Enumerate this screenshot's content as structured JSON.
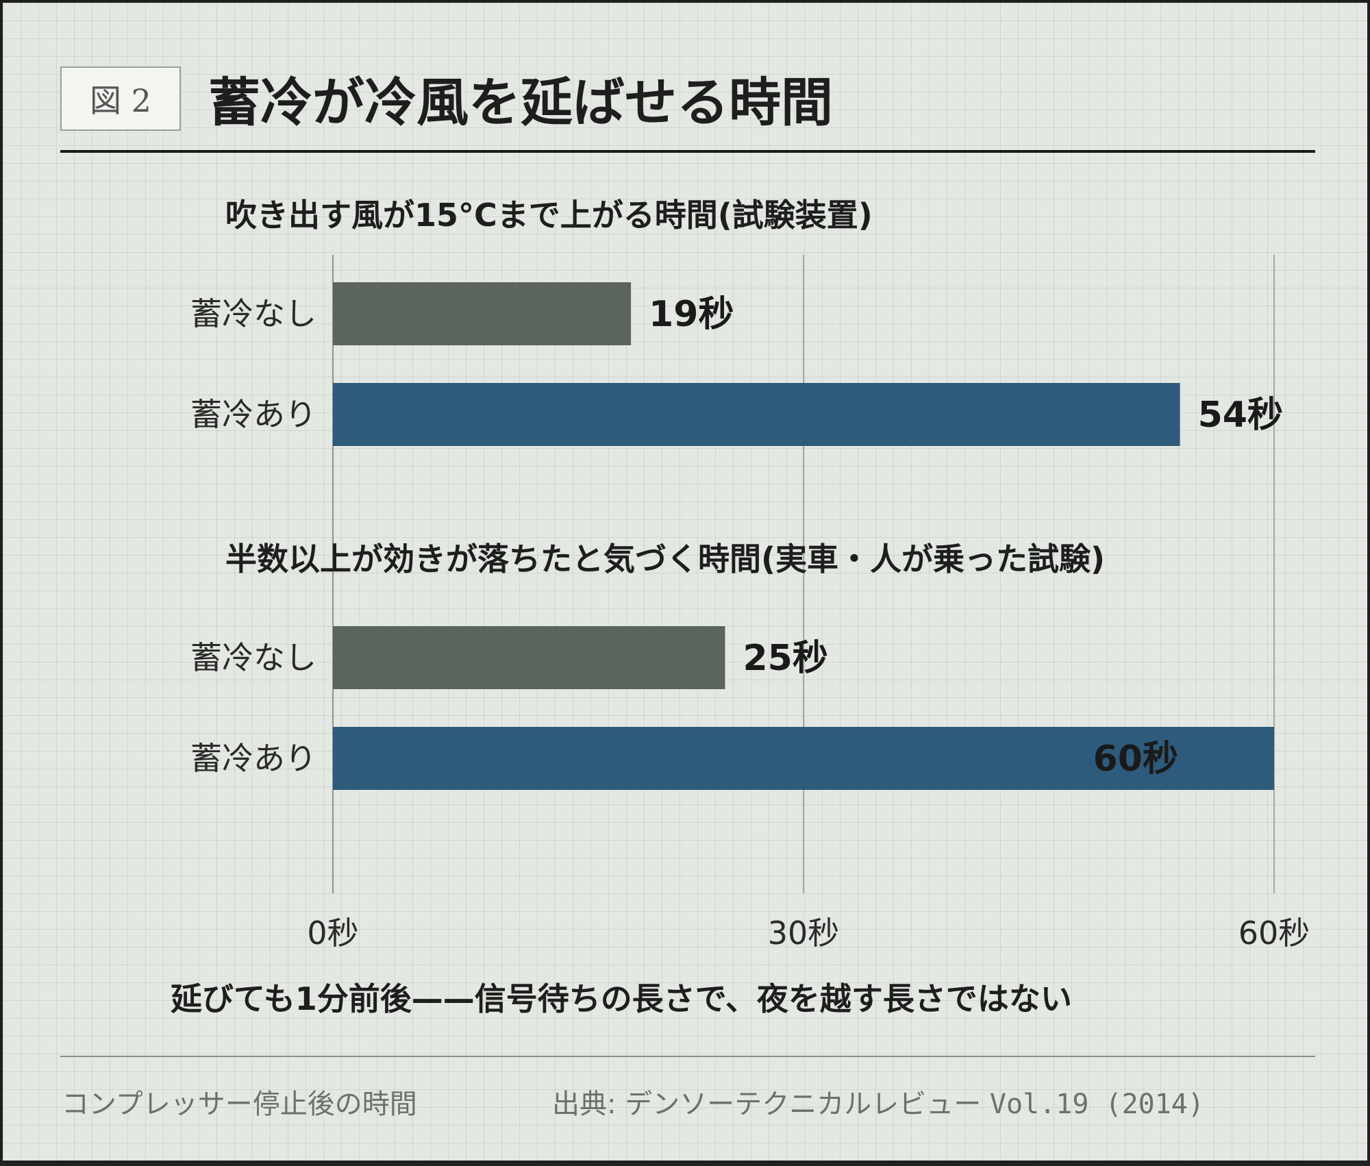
{
  "header": {
    "figure_label": "図 2",
    "title": "蓄冷が冷風を延ばせる時間"
  },
  "chart_data": {
    "type": "bar",
    "orientation": "horizontal",
    "xlim": [
      0,
      60
    ],
    "x_ticks": [
      0,
      30,
      60
    ],
    "x_tick_labels": [
      "0秒",
      "30秒",
      "60秒"
    ],
    "grid": true,
    "legend": "none",
    "groups": [
      {
        "title": "吹き出す風が15°Cまで上がる時間(試験装置)",
        "bars": [
          {
            "category": "蓄冷なし",
            "value": 19,
            "label": "19秒"
          },
          {
            "category": "蓄冷あり",
            "value": 54,
            "label": "54秒"
          }
        ]
      },
      {
        "title": "半数以上が効きが落ちたと気づく時間(実車・人が乗った試験)",
        "bars": [
          {
            "category": "蓄冷なし",
            "value": 25,
            "label": "25秒"
          },
          {
            "category": "蓄冷あり",
            "value": 60,
            "label": "60秒"
          }
        ]
      }
    ],
    "colors": {
      "without": "#5c655d",
      "with": "#2e5a7b"
    }
  },
  "subtitle": "延びても1分前後——信号待ちの長さで、夜を越す長さではない",
  "footer": {
    "note": "コンプレッサー停止後の時間",
    "source_prefix": "出典: デンソーテクニカルレビュー ",
    "source_mono": "Vol.19 (2014)"
  }
}
